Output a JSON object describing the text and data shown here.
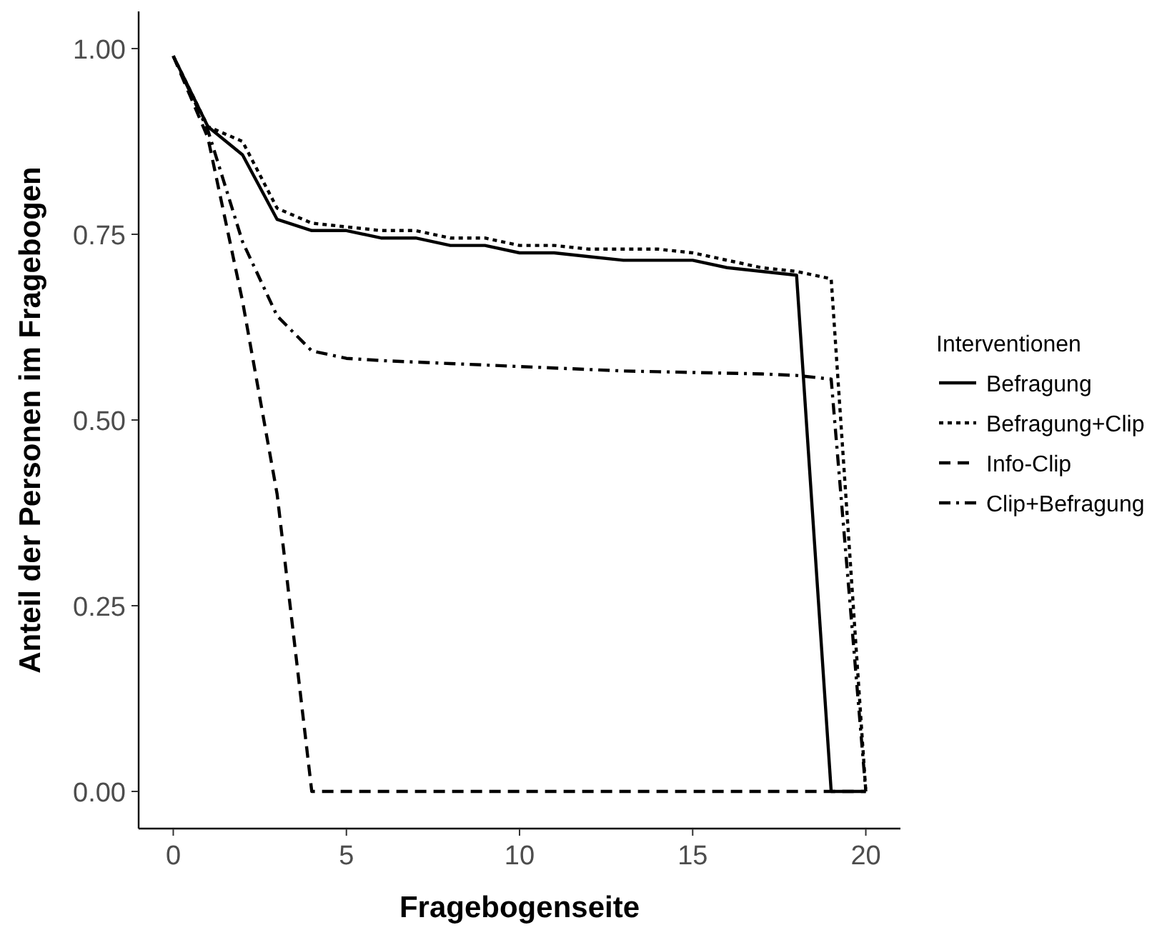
{
  "chart_data": {
    "type": "line",
    "xlabel": "Fragebogenseite",
    "ylabel": "Anteil der Personen im Fragebogen",
    "legend_title": "Interventionen",
    "legend": "right",
    "grid": false,
    "x": [
      0,
      1,
      2,
      3,
      4,
      5,
      6,
      7,
      8,
      9,
      10,
      11,
      12,
      13,
      14,
      15,
      16,
      17,
      18,
      19,
      20
    ],
    "xlim": [
      -1,
      21
    ],
    "xticks": [
      0,
      5,
      10,
      15,
      20
    ],
    "ylim": [
      -0.05,
      1.05
    ],
    "yticks": [
      {
        "value": 0,
        "label": "0.00"
      },
      {
        "value": 0.25,
        "label": "0.25"
      },
      {
        "value": 0.5,
        "label": "0.50"
      },
      {
        "value": 0.75,
        "label": "0.75"
      },
      {
        "value": 1,
        "label": "1.00"
      }
    ],
    "series": [
      {
        "name": "Befragung",
        "color": "#000000",
        "line_style": "solid",
        "values": [
          0.99,
          0.895,
          0.857,
          0.77,
          0.755,
          0.755,
          0.745,
          0.745,
          0.735,
          0.735,
          0.725,
          0.725,
          0.72,
          0.715,
          0.715,
          0.715,
          0.705,
          0.7,
          0.695,
          0,
          0
        ]
      },
      {
        "name": "Befragung+Clip",
        "color": "#000000",
        "line_style": "dotted",
        "values": [
          0.99,
          0.895,
          0.875,
          0.785,
          0.765,
          0.76,
          0.755,
          0.755,
          0.745,
          0.745,
          0.735,
          0.735,
          0.73,
          0.73,
          0.73,
          0.725,
          0.715,
          0.705,
          0.7,
          0.69,
          0
        ]
      },
      {
        "name": "Info-Clip",
        "color": "#000000",
        "line_style": "dashed",
        "values": [
          0.99,
          0.88,
          0.66,
          0.4,
          0,
          0,
          0,
          0,
          0,
          0,
          0,
          0,
          0,
          0,
          0,
          0,
          0,
          0,
          0,
          0,
          0
        ]
      },
      {
        "name": "Clip+Befragung",
        "color": "#000000",
        "line_style": "dashdot",
        "values": [
          0.99,
          0.89,
          0.74,
          0.64,
          0.593,
          0.583,
          0.58,
          0.578,
          0.576,
          0.574,
          0.572,
          0.57,
          0.568,
          0.566,
          0.565,
          0.564,
          0.563,
          0.562,
          0.56,
          0.555,
          0
        ]
      }
    ]
  }
}
